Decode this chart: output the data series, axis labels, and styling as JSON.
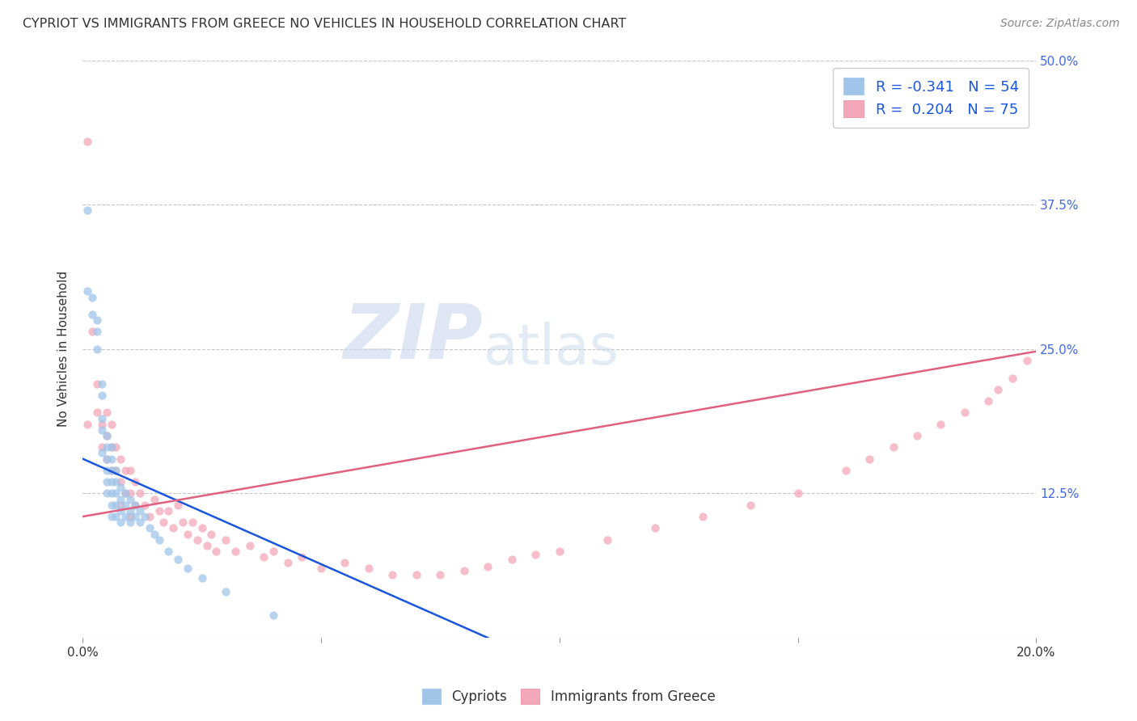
{
  "title": "CYPRIOT VS IMMIGRANTS FROM GREECE NO VEHICLES IN HOUSEHOLD CORRELATION CHART",
  "source": "Source: ZipAtlas.com",
  "ylabel": "No Vehicles in Household",
  "watermark_big": "ZIP",
  "watermark_small": "atlas",
  "legend_label1": "R = -0.341   N = 54",
  "legend_label2": "R =  0.204   N = 75",
  "legend_bottom1": "Cypriots",
  "legend_bottom2": "Immigrants from Greece",
  "color_blue": "#9fc5e8",
  "color_pink": "#f4a7b9",
  "color_line_blue": "#1a56db",
  "color_line_pink": "#e06080",
  "xmin": 0.0,
  "xmax": 0.2,
  "ymin": 0.0,
  "ymax": 0.5,
  "xticks": [
    0.0,
    0.05,
    0.1,
    0.15,
    0.2
  ],
  "xtick_labels": [
    "0.0%",
    "",
    "",
    "",
    "20.0%"
  ],
  "yticks": [
    0.0,
    0.125,
    0.25,
    0.375,
    0.5
  ],
  "ytick_labels": [
    "",
    "12.5%",
    "25.0%",
    "37.5%",
    "50.0%"
  ],
  "cypriot_x": [
    0.001,
    0.001,
    0.002,
    0.002,
    0.003,
    0.003,
    0.003,
    0.004,
    0.004,
    0.004,
    0.004,
    0.004,
    0.005,
    0.005,
    0.005,
    0.005,
    0.005,
    0.005,
    0.006,
    0.006,
    0.006,
    0.006,
    0.006,
    0.006,
    0.006,
    0.007,
    0.007,
    0.007,
    0.007,
    0.007,
    0.008,
    0.008,
    0.008,
    0.008,
    0.009,
    0.009,
    0.009,
    0.01,
    0.01,
    0.01,
    0.011,
    0.011,
    0.012,
    0.012,
    0.013,
    0.014,
    0.015,
    0.016,
    0.018,
    0.02,
    0.022,
    0.025,
    0.03,
    0.04
  ],
  "cypriot_y": [
    0.37,
    0.3,
    0.295,
    0.28,
    0.275,
    0.265,
    0.25,
    0.22,
    0.21,
    0.19,
    0.18,
    0.16,
    0.175,
    0.165,
    0.155,
    0.145,
    0.135,
    0.125,
    0.165,
    0.155,
    0.145,
    0.135,
    0.125,
    0.115,
    0.105,
    0.145,
    0.135,
    0.125,
    0.115,
    0.105,
    0.13,
    0.12,
    0.11,
    0.1,
    0.125,
    0.115,
    0.105,
    0.12,
    0.11,
    0.1,
    0.115,
    0.105,
    0.11,
    0.1,
    0.105,
    0.095,
    0.09,
    0.085,
    0.075,
    0.068,
    0.06,
    0.052,
    0.04,
    0.02
  ],
  "greece_x": [
    0.001,
    0.001,
    0.002,
    0.003,
    0.003,
    0.004,
    0.004,
    0.005,
    0.005,
    0.005,
    0.006,
    0.006,
    0.006,
    0.007,
    0.007,
    0.008,
    0.008,
    0.008,
    0.009,
    0.009,
    0.01,
    0.01,
    0.01,
    0.011,
    0.011,
    0.012,
    0.013,
    0.014,
    0.015,
    0.016,
    0.017,
    0.018,
    0.019,
    0.02,
    0.021,
    0.022,
    0.023,
    0.024,
    0.025,
    0.026,
    0.027,
    0.028,
    0.03,
    0.032,
    0.035,
    0.038,
    0.04,
    0.043,
    0.046,
    0.05,
    0.055,
    0.06,
    0.065,
    0.07,
    0.075,
    0.08,
    0.085,
    0.09,
    0.095,
    0.1,
    0.11,
    0.12,
    0.13,
    0.14,
    0.15,
    0.16,
    0.165,
    0.17,
    0.175,
    0.18,
    0.185,
    0.19,
    0.192,
    0.195,
    0.198
  ],
  "greece_y": [
    0.43,
    0.185,
    0.265,
    0.22,
    0.195,
    0.185,
    0.165,
    0.195,
    0.175,
    0.155,
    0.185,
    0.165,
    0.145,
    0.165,
    0.145,
    0.155,
    0.135,
    0.115,
    0.145,
    0.125,
    0.145,
    0.125,
    0.105,
    0.135,
    0.115,
    0.125,
    0.115,
    0.105,
    0.12,
    0.11,
    0.1,
    0.11,
    0.095,
    0.115,
    0.1,
    0.09,
    0.1,
    0.085,
    0.095,
    0.08,
    0.09,
    0.075,
    0.085,
    0.075,
    0.08,
    0.07,
    0.075,
    0.065,
    0.07,
    0.06,
    0.065,
    0.06,
    0.055,
    0.055,
    0.055,
    0.058,
    0.062,
    0.068,
    0.072,
    0.075,
    0.085,
    0.095,
    0.105,
    0.115,
    0.125,
    0.145,
    0.155,
    0.165,
    0.175,
    0.185,
    0.195,
    0.205,
    0.215,
    0.225,
    0.24
  ],
  "blue_trend_x": [
    0.0,
    0.085
  ],
  "blue_trend_y": [
    0.155,
    0.0
  ],
  "pink_trend_x": [
    0.0,
    0.2
  ],
  "pink_trend_y": [
    0.105,
    0.248
  ]
}
